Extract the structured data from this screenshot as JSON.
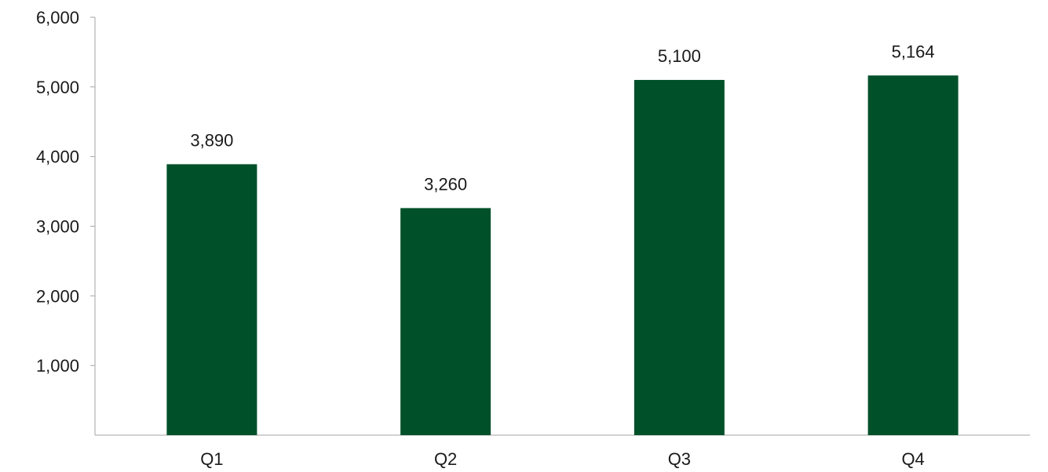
{
  "chart_data": {
    "type": "bar",
    "categories": [
      "Q1",
      "Q2",
      "Q3",
      "Q4"
    ],
    "values": [
      3890,
      3260,
      5100,
      5164
    ],
    "value_labels": [
      "3,890",
      "3,260",
      "5,100",
      "5,164"
    ],
    "yticks": [
      {
        "value": 1000,
        "label": "1,000"
      },
      {
        "value": 2000,
        "label": "2,000"
      },
      {
        "value": 3000,
        "label": "3,000"
      },
      {
        "value": 4000,
        "label": "4,000"
      },
      {
        "value": 5000,
        "label": "5,000"
      },
      {
        "value": 6000,
        "label": "6,000"
      }
    ],
    "ylim": [
      0,
      6000
    ],
    "title": "",
    "xlabel": "",
    "ylabel": "",
    "grid": false,
    "legend": "none",
    "colors": {
      "bar": "#00502a",
      "axis": "#a6a6a6",
      "text": "#1a1a1a"
    }
  }
}
